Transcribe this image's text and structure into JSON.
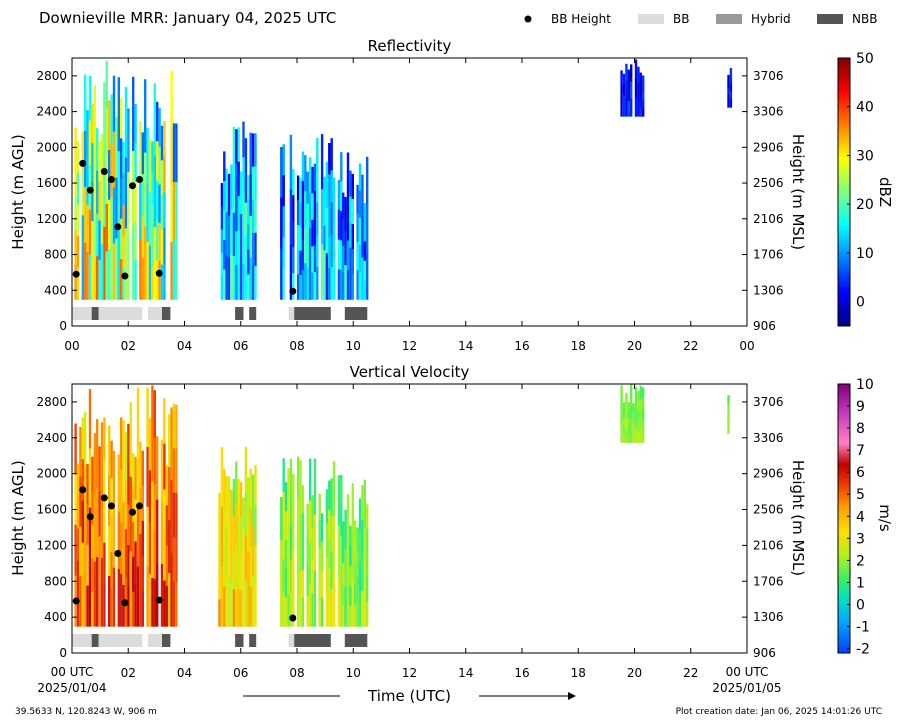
{
  "header": {
    "title": "Downieville MRR:  January 04, 2025 UTC",
    "legend": [
      {
        "label": "BB Height",
        "kind": "marker",
        "color": "#000000"
      },
      {
        "label": "BB",
        "kind": "swatch",
        "color": "#dcdcdc"
      },
      {
        "label": "Hybrid",
        "kind": "swatch",
        "color": "#999999"
      },
      {
        "label": "NBB",
        "kind": "swatch",
        "color": "#555555"
      }
    ]
  },
  "footer": {
    "x_title": "Time (UTC)",
    "start_tick": "00 UTC",
    "start_date": "2025/01/04",
    "end_tick": "00 UTC",
    "end_date": "2025/01/05",
    "location": "39.5633 N, 120.8243 W, 906 m",
    "creation": "Plot creation date: Jan 06, 2025 14:01:26 UTC"
  },
  "chart_data": [
    {
      "type": "heatmap",
      "title": "Reflectivity",
      "ylabel": "Height (m AGL)",
      "ylabel_right": "Height (m MSL)",
      "colorbar_label": "dBZ",
      "xlim": [
        0,
        24
      ],
      "ylim": [
        0,
        3000
      ],
      "x_ticks": [
        "00",
        "02",
        "04",
        "06",
        "08",
        "10",
        "12",
        "14",
        "16",
        "18",
        "20",
        "22",
        "00"
      ],
      "y_ticks": [
        0,
        400,
        800,
        1200,
        1600,
        2000,
        2400,
        2800
      ],
      "y_ticks_right": [
        "906",
        "1306",
        "1706",
        "2106",
        "2506",
        "2906",
        "3306",
        "3706"
      ],
      "colorbar": {
        "min": -5,
        "max": 50,
        "ticks": [
          0,
          10,
          20,
          30,
          40,
          50
        ],
        "colormap": "jet"
      },
      "echo_regions": [
        {
          "start": 0.0,
          "end": 3.7,
          "bottom": 300,
          "top": 3000,
          "value": 22,
          "spread": 14
        },
        {
          "start": 5.2,
          "end": 6.5,
          "bottom": 300,
          "top": 2300,
          "value": 12,
          "spread": 9
        },
        {
          "start": 7.4,
          "end": 9.6,
          "bottom": 300,
          "top": 2150,
          "value": 10,
          "spread": 9
        },
        {
          "start": 9.6,
          "end": 10.5,
          "bottom": 300,
          "top": 1950,
          "value": 10,
          "spread": 9
        },
        {
          "start": 19.5,
          "end": 20.3,
          "bottom": 2350,
          "top": 3000,
          "value": 2,
          "spread": 4
        },
        {
          "start": 23.3,
          "end": 23.4,
          "bottom": 2450,
          "top": 3000,
          "value": 2,
          "spread": 4
        }
      ],
      "bb_height": [
        {
          "x": 0.15,
          "y": 580
        },
        {
          "x": 0.38,
          "y": 1820
        },
        {
          "x": 0.65,
          "y": 1520
        },
        {
          "x": 1.15,
          "y": 1730
        },
        {
          "x": 1.4,
          "y": 1640
        },
        {
          "x": 1.63,
          "y": 1110
        },
        {
          "x": 1.88,
          "y": 560
        },
        {
          "x": 2.15,
          "y": 1570
        },
        {
          "x": 2.4,
          "y": 1640
        },
        {
          "x": 3.1,
          "y": 590
        },
        {
          "x": 7.85,
          "y": 390
        }
      ],
      "bb_class": [
        {
          "start": 0.0,
          "end": 0.7,
          "class": "BB"
        },
        {
          "start": 0.7,
          "end": 0.95,
          "class": "NBB"
        },
        {
          "start": 0.95,
          "end": 2.5,
          "class": "BB"
        },
        {
          "start": 2.7,
          "end": 3.2,
          "class": "BB"
        },
        {
          "start": 3.2,
          "end": 3.5,
          "class": "NBB"
        },
        {
          "start": 5.8,
          "end": 6.1,
          "class": "NBB"
        },
        {
          "start": 6.3,
          "end": 6.55,
          "class": "NBB"
        },
        {
          "start": 7.7,
          "end": 7.9,
          "class": "BB"
        },
        {
          "start": 7.9,
          "end": 9.2,
          "class": "NBB"
        },
        {
          "start": 9.7,
          "end": 10.5,
          "class": "NBB"
        }
      ]
    },
    {
      "type": "heatmap",
      "title": "Vertical Velocity",
      "ylabel": "Height (m AGL)",
      "ylabel_right": "Height (m MSL)",
      "colorbar_label": "m/s",
      "xlim": [
        0,
        24
      ],
      "ylim": [
        0,
        3000
      ],
      "x_ticks": [
        "",
        "02",
        "04",
        "06",
        "08",
        "10",
        "12",
        "14",
        "16",
        "18",
        "20",
        "22",
        ""
      ],
      "y_ticks": [
        0,
        400,
        800,
        1200,
        1600,
        2000,
        2400,
        2800
      ],
      "y_ticks_right": [
        "906",
        "1306",
        "1706",
        "2106",
        "2506",
        "2906",
        "3306",
        "3706"
      ],
      "colorbar": {
        "min": -2.2,
        "max": 10,
        "ticks": [
          -2,
          -1,
          0,
          1,
          2,
          3,
          4,
          5,
          6,
          7,
          8,
          9,
          10
        ],
        "colormap": "velocity"
      },
      "echo_regions": [
        {
          "start": 0.0,
          "end": 3.7,
          "bottom": 300,
          "top": 3000,
          "value": 4.5,
          "spread": 1.5
        },
        {
          "start": 5.2,
          "end": 6.5,
          "bottom": 300,
          "top": 2450,
          "value": 3.0,
          "spread": 1.2
        },
        {
          "start": 7.4,
          "end": 9.6,
          "bottom": 300,
          "top": 2200,
          "value": 1.8,
          "spread": 1.1
        },
        {
          "start": 9.6,
          "end": 10.5,
          "bottom": 300,
          "top": 1950,
          "value": 1.5,
          "spread": 1.0
        },
        {
          "start": 19.5,
          "end": 20.3,
          "bottom": 2350,
          "top": 3000,
          "value": 1.7,
          "spread": 0.4
        },
        {
          "start": 23.3,
          "end": 23.4,
          "bottom": 2450,
          "top": 3000,
          "value": 1.7,
          "spread": 0.4
        }
      ],
      "bb_height": [
        {
          "x": 0.15,
          "y": 580
        },
        {
          "x": 0.38,
          "y": 1820
        },
        {
          "x": 0.65,
          "y": 1520
        },
        {
          "x": 1.15,
          "y": 1730
        },
        {
          "x": 1.4,
          "y": 1640
        },
        {
          "x": 1.63,
          "y": 1110
        },
        {
          "x": 1.88,
          "y": 560
        },
        {
          "x": 2.15,
          "y": 1570
        },
        {
          "x": 2.4,
          "y": 1640
        },
        {
          "x": 3.1,
          "y": 590
        },
        {
          "x": 7.85,
          "y": 390
        }
      ],
      "bb_class": [
        {
          "start": 0.0,
          "end": 0.7,
          "class": "BB"
        },
        {
          "start": 0.7,
          "end": 0.95,
          "class": "NBB"
        },
        {
          "start": 0.95,
          "end": 2.5,
          "class": "BB"
        },
        {
          "start": 2.7,
          "end": 3.2,
          "class": "BB"
        },
        {
          "start": 3.2,
          "end": 3.5,
          "class": "NBB"
        },
        {
          "start": 5.8,
          "end": 6.1,
          "class": "NBB"
        },
        {
          "start": 6.3,
          "end": 6.55,
          "class": "NBB"
        },
        {
          "start": 7.7,
          "end": 7.9,
          "class": "BB"
        },
        {
          "start": 7.9,
          "end": 9.2,
          "class": "NBB"
        },
        {
          "start": 9.7,
          "end": 10.5,
          "class": "NBB"
        }
      ]
    }
  ]
}
